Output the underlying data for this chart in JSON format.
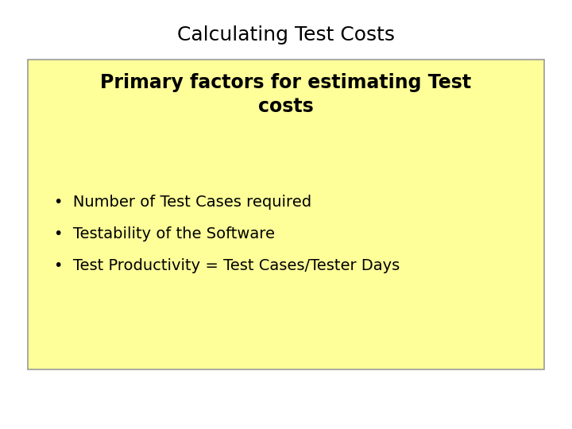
{
  "title": "Calculating Test Costs",
  "title_fontsize": 18,
  "title_fontweight": "normal",
  "background_color": "#ffffff",
  "box_color": "#ffff99",
  "box_edge_color": "#999999",
  "box_facecolor": "#ffff99",
  "subtitle": "Primary factors for estimating Test\ncosts",
  "subtitle_fontsize": 17,
  "subtitle_fontweight": "bold",
  "bullet_points": [
    "Number of Test Cases required",
    "Testability of the Software",
    "Test Productivity = Test Cases/Tester Days"
  ],
  "bullet_fontsize": 14,
  "bullet_color": "#000000",
  "bullet_symbol": "•"
}
